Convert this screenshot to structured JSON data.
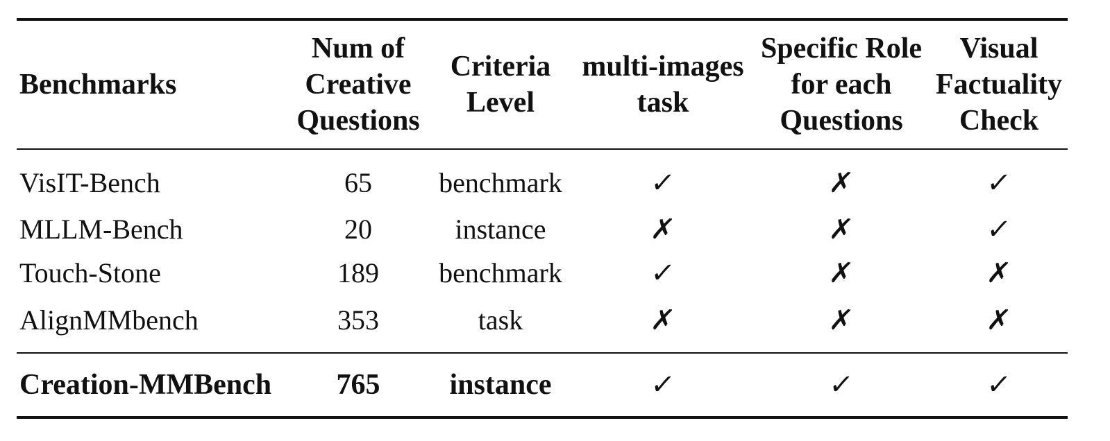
{
  "headers": {
    "benchmarks": [
      "Benchmarks"
    ],
    "num_questions": [
      "Num of",
      "Creative",
      "Questions"
    ],
    "criteria_level": [
      "Criteria",
      "Level"
    ],
    "multi_images": [
      "multi-images",
      "task"
    ],
    "specific_role": [
      "Specific Role",
      "for each",
      "Questions"
    ],
    "visual_factuality": [
      "Visual",
      "Factuality",
      "Check"
    ]
  },
  "rows": [
    {
      "name": "VisIT-Bench",
      "num": "65",
      "criteria": "benchmark",
      "multi": "✓",
      "role": "✗",
      "fact": "✓"
    },
    {
      "name": "MLLM-Bench",
      "num": "20",
      "criteria": "instance",
      "multi": "✗",
      "role": "✗",
      "fact": "✓"
    },
    {
      "name": "Touch-Stone",
      "num": "189",
      "criteria": "benchmark",
      "multi": "✓",
      "role": "✗",
      "fact": "✗"
    },
    {
      "name": "AlignMMbench",
      "num": "353",
      "criteria": "task",
      "multi": "✗",
      "role": "✗",
      "fact": "✗"
    }
  ],
  "ours": {
    "name": "Creation-MMBench",
    "num": "765",
    "criteria": "instance",
    "multi": "✓",
    "role": "✓",
    "fact": "✓"
  }
}
